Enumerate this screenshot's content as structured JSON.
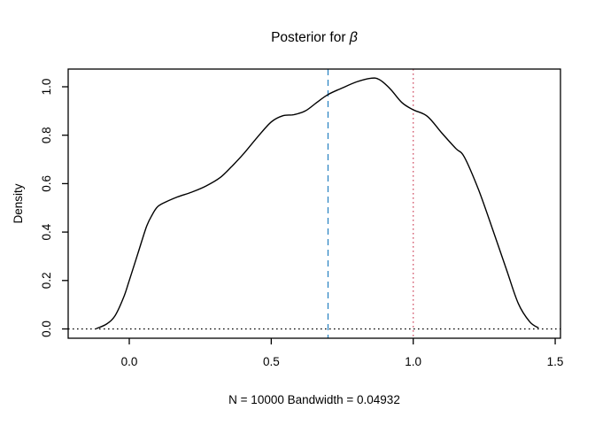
{
  "title": {
    "prefix": "Posterior for ",
    "symbol": "β",
    "full": "Posterior for β"
  },
  "axes": {
    "xlabel": "N = 10000   Bandwidth = 0.04932",
    "ylabel": "Density",
    "x_ticks": {
      "values": [
        0.0,
        0.5,
        1.0,
        1.5
      ],
      "labels": [
        "0.0",
        "0.5",
        "1.0",
        "1.5"
      ]
    },
    "y_ticks": {
      "values": [
        0.0,
        0.2,
        0.4,
        0.6,
        0.8,
        1.0
      ],
      "labels": [
        "0.0",
        "0.2",
        "0.4",
        "0.6",
        "0.8",
        "1.0"
      ]
    }
  },
  "colors": {
    "curve": "#000000",
    "box": "#000000",
    "vline_dashed": "#2e86c4",
    "vline_dotted": "#d2556a",
    "hline_dotted": "#000000"
  },
  "chart_data": {
    "type": "line",
    "title": "Posterior for β",
    "xlabel": "N = 10000   Bandwidth = 0.04932",
    "ylabel": "Density",
    "xlim": [
      -0.22,
      1.52
    ],
    "ylim": [
      -0.04,
      1.07
    ],
    "grid": false,
    "x_ticks": [
      0.0,
      0.5,
      1.0,
      1.5
    ],
    "y_ticks": [
      0.0,
      0.2,
      0.4,
      0.6,
      0.8,
      1.0
    ],
    "series": [
      {
        "name": "posterior-density",
        "color": "#000000",
        "x": [
          -0.115,
          -0.08,
          -0.05,
          -0.02,
          0.0,
          0.03,
          0.06,
          0.08,
          0.1,
          0.13,
          0.17,
          0.22,
          0.27,
          0.32,
          0.36,
          0.4,
          0.45,
          0.5,
          0.54,
          0.58,
          0.62,
          0.66,
          0.7,
          0.75,
          0.8,
          0.85,
          0.88,
          0.92,
          0.96,
          1.0,
          1.05,
          1.1,
          1.15,
          1.18,
          1.23,
          1.28,
          1.33,
          1.37,
          1.41,
          1.44
        ],
        "y": [
          0.002,
          0.02,
          0.055,
          0.13,
          0.2,
          0.31,
          0.42,
          0.47,
          0.505,
          0.525,
          0.545,
          0.565,
          0.59,
          0.625,
          0.67,
          0.72,
          0.79,
          0.855,
          0.88,
          0.885,
          0.9,
          0.935,
          0.968,
          0.995,
          1.02,
          1.035,
          1.03,
          0.99,
          0.935,
          0.905,
          0.878,
          0.81,
          0.745,
          0.71,
          0.575,
          0.41,
          0.24,
          0.105,
          0.03,
          0.005
        ]
      }
    ],
    "reference_lines": [
      {
        "orientation": "vertical",
        "value": 0.7,
        "style": "dashed",
        "color": "#2e86c4"
      },
      {
        "orientation": "vertical",
        "value": 1.0,
        "style": "dotted",
        "color": "#d2556a"
      },
      {
        "orientation": "horizontal",
        "value": 0.0,
        "style": "dotted",
        "color": "#000000"
      }
    ]
  }
}
